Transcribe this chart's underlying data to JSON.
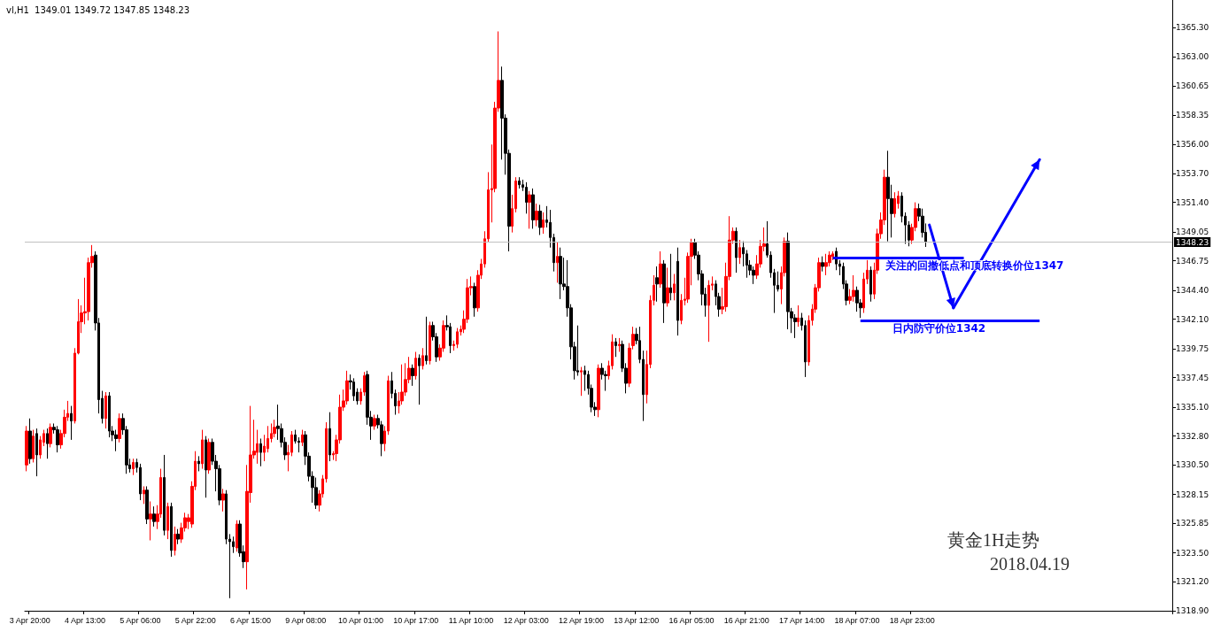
{
  "chart_data": {
    "type": "candlestick",
    "title": "vl,H1  1349.01 1349.72 1347.85 1348.23",
    "colors": [
      "#ff0000",
      "#000000",
      "#ff0000",
      "#000000",
      "#ff0000",
      "#ff0000",
      "#000000",
      "#ff0000",
      "#000000",
      "#000000",
      "#ff0000",
      "#ff0000",
      "#ff0000",
      "#000000",
      "#ff0000",
      "#ff0000",
      "#ff0000",
      "#ff0000",
      "#ff0000",
      "#ff0000",
      "#000000",
      "#000000",
      "#000000",
      "#ff0000",
      "#000000",
      "#000000",
      "#000000",
      "#ff0000",
      "#000000",
      "#000000",
      "#000000",
      "#ff0000",
      "#000000",
      "#000000",
      "#ff0000",
      "#000000",
      "#ff0000",
      "#000000",
      "#ff0000",
      "#ff0000",
      "#000000",
      "#ff0000",
      "#000000",
      "#ff0000",
      "#000000",
      "#ff0000",
      "#ff0000",
      "#ff0000",
      "#ff0000",
      "#ff0000",
      "#000000",
      "#ff0000",
      "#000000",
      "#ff0000",
      "#000000",
      "#000000",
      "#000000",
      "#ff0000",
      "#000000",
      "#000000",
      "#000000",
      "#ff0000",
      "#000000",
      "#000000",
      "#ff0000",
      "#ff0000",
      "#ff0000",
      "#ff0000",
      "#000000",
      "#ff0000",
      "#ff0000",
      "#ff0000",
      "#ff0000",
      "#000000",
      "#000000",
      "#000000",
      "#ff0000",
      "#ff0000",
      "#000000",
      "#000000",
      "#ff0000",
      "#000000",
      "#000000",
      "#000000",
      "#000000",
      "#ff0000",
      "#ff0000",
      "#ff0000",
      "#000000",
      "#ff0000",
      "#ff0000",
      "#ff0000",
      "#ff0000",
      "#ff0000",
      "#000000",
      "#000000",
      "#000000",
      "#ff0000",
      "#ff0000",
      "#000000",
      "#000000",
      "#ff0000",
      "#000000",
      "#000000",
      "#ff0000",
      "#ff0000",
      "#000000",
      "#000000",
      "#ff0000",
      "#ff0000",
      "#ff0000",
      "#ff0000",
      "#000000",
      "#ff0000",
      "#000000",
      "#ff0000",
      "#000000",
      "#ff0000",
      "#000000",
      "#000000",
      "#ff0000",
      "#ff0000",
      "#000000",
      "#000000",
      "#ff0000",
      "#ff0000",
      "#ff0000",
      "#ff0000",
      "#ff0000",
      "#ff0000",
      "#000000",
      "#ff0000",
      "#ff0000",
      "#ff0000",
      "#ff0000",
      "#ff0000",
      "#ff0000",
      "#ff0000",
      "#000000",
      "#000000",
      "#000000",
      "#ff0000",
      "#ff0000",
      "#000000",
      "#000000",
      "#000000",
      "#ff0000",
      "#000000",
      "#ff0000",
      "#000000",
      "#ff0000",
      "#000000",
      "#000000",
      "#000000",
      "#ff0000",
      "#000000",
      "#000000",
      "#000000",
      "#000000",
      "#000000",
      "#000000",
      "#ff0000",
      "#000000",
      "#000000",
      "#000000",
      "#000000",
      "#ff0000",
      "#000000",
      "#000000",
      "#ff0000",
      "#ff0000",
      "#000000",
      "#ff0000",
      "#000000",
      "#000000",
      "#ff0000",
      "#ff0000",
      "#000000",
      "#000000",
      "#000000",
      "#ff0000",
      "#ff0000",
      "#ff0000",
      "#000000",
      "#ff0000",
      "#000000",
      "#ff0000",
      "#000000",
      "#ff0000",
      "#000000",
      "#ff0000",
      "#ff0000",
      "#ff0000",
      "#ff0000",
      "#000000",
      "#000000",
      "#000000",
      "#000000",
      "#ff0000",
      "#ff0000",
      "#000000",
      "#000000",
      "#ff0000",
      "#ff0000",
      "#ff0000",
      "#ff0000",
      "#000000",
      "#ff0000",
      "#000000",
      "#000000",
      "#000000",
      "#000000",
      "#ff0000",
      "#ff0000",
      "#ff0000",
      "#000000",
      "#000000",
      "#000000",
      "#000000",
      "#ff0000",
      "#ff0000",
      "#000000",
      "#000000",
      "#000000",
      "#ff0000",
      "#000000",
      "#000000",
      "#ff0000",
      "#ff0000",
      "#ff0000",
      "#ff0000",
      "#000000",
      "#ff0000",
      "#ff0000",
      "#ff0000",
      "#000000",
      "#000000",
      "#000000",
      "#000000",
      "#ff0000",
      "#ff0000",
      "#000000",
      "#000000",
      "#ff0000",
      "#ff0000",
      "#000000",
      "#ff0000",
      "#ff0000",
      "#ff0000",
      "#ff0000",
      "#000000",
      "#000000",
      "#ff0000",
      "#ff0000",
      "#000000",
      "#000000",
      "#000000",
      "#ff0000",
      "#ff0000",
      "#000000",
      "#000000",
      "#000000",
      null,
      null,
      null,
      null,
      null,
      null,
      null,
      null,
      null,
      null,
      null,
      null,
      null,
      null,
      null,
      null,
      null,
      null,
      null,
      null,
      null,
      null,
      null,
      null,
      null,
      null,
      null,
      null,
      null,
      null,
      null,
      null,
      null,
      null,
      null,
      null,
      null,
      null,
      null,
      null,
      null,
      null,
      null,
      null,
      null,
      null,
      null,
      null,
      null,
      null,
      null,
      null,
      null,
      null,
      null,
      null,
      null,
      null,
      null,
      null,
      null,
      null,
      null,
      null,
      null,
      null,
      null,
      null,
      null,
      null,
      null
    ],
    "categories": [
      null,
      "3 Apr 20:00",
      null,
      null,
      null,
      null,
      null,
      null,
      null,
      null,
      null,
      null,
      null,
      null,
      null,
      null,
      null,
      "4 Apr 13:00",
      null,
      null,
      null,
      null,
      null,
      null,
      null,
      null,
      null,
      null,
      null,
      null,
      null,
      null,
      null,
      "5 Apr 06:00",
      null,
      null,
      null,
      null,
      null,
      null,
      null,
      null,
      null,
      null,
      null,
      null,
      null,
      null,
      null,
      "5 Apr 22:00",
      null,
      null,
      null,
      null,
      null,
      null,
      null,
      null,
      null,
      null,
      null,
      null,
      null,
      null,
      null,
      "6 Apr 15:00",
      null,
      null,
      null,
      null,
      null,
      null,
      null,
      null,
      null,
      null,
      null,
      null,
      null,
      null,
      null,
      "9 Apr 08:00",
      null,
      null,
      null,
      null,
      null,
      null,
      null,
      null,
      null,
      null,
      null,
      null,
      null,
      null,
      null,
      "10 Apr 01:00",
      null,
      null,
      null,
      null,
      null,
      null,
      null,
      null,
      null,
      null,
      null,
      null,
      null,
      null,
      null,
      "10 Apr 17:00",
      null,
      null,
      null,
      null,
      null,
      null,
      null,
      null,
      null,
      null,
      null,
      null,
      null,
      null,
      null,
      "11 Apr 10:00",
      null,
      null,
      null,
      null,
      null,
      null,
      null,
      null,
      null,
      null,
      null,
      null,
      null,
      null,
      null,
      "12 Apr 03:00",
      null,
      null,
      null,
      null,
      null,
      null,
      null,
      null,
      null,
      null,
      null,
      null,
      null,
      null,
      null,
      "12 Apr 19:00",
      null,
      null,
      null,
      null,
      null,
      null,
      null,
      null,
      null,
      null,
      null,
      null,
      null,
      null,
      null,
      "13 Apr 12:00",
      null,
      null,
      null,
      null,
      null,
      null,
      null,
      null,
      null,
      null,
      null,
      null,
      null,
      null,
      null,
      "16 Apr 05:00",
      null,
      null,
      null,
      null,
      null,
      null,
      null,
      null,
      null,
      null,
      null,
      null,
      null,
      null,
      null,
      "16 Apr 21:00",
      null,
      null,
      null,
      null,
      null,
      null,
      null,
      null,
      null,
      null,
      null,
      null,
      null,
      null,
      null,
      "17 Apr 14:00",
      null,
      null,
      null,
      null,
      null,
      null,
      null,
      null,
      null,
      null,
      null,
      null,
      null,
      null,
      null,
      "18 Apr 07:00",
      null,
      null,
      null,
      null,
      null,
      null,
      null,
      null,
      null,
      null,
      null,
      null,
      null,
      null,
      null,
      "18 Apr 23:00",
      null,
      null,
      null,
      null,
      null,
      null,
      null,
      null,
      null,
      null,
      null,
      null,
      null,
      null,
      null,
      null,
      null,
      null,
      null,
      null,
      null,
      null,
      null,
      null,
      null,
      null,
      null,
      null,
      null,
      null,
      null,
      null,
      null,
      null,
      null,
      null,
      null,
      null,
      null,
      null,
      null,
      null,
      null,
      null,
      null,
      null,
      null,
      null,
      null,
      null,
      null,
      null,
      null,
      null,
      null,
      null,
      null,
      null,
      null,
      null,
      null,
      null,
      null,
      null,
      null,
      null,
      null,
      null,
      null,
      null,
      null,
      null,
      null,
      null,
      null
    ],
    "ohlc": [
      [
        1330.5,
        1333.6,
        1330.0,
        1333.2
      ],
      [
        1333.2,
        1334.2,
        1330.6,
        1331.0
      ],
      [
        1331.0,
        1333.3,
        1330.7,
        1332.8
      ],
      [
        1333.0,
        1333.4,
        1329.6,
        1331.3
      ],
      [
        1331.3,
        1332.8,
        1331.0,
        1332.5
      ],
      [
        1332.3,
        1333.3,
        1332.0,
        1333.0
      ],
      [
        1333.0,
        1333.4,
        1331.0,
        1332.2
      ],
      [
        1332.2,
        1333.8,
        1331.9,
        1333.5
      ],
      [
        1333.5,
        1333.8,
        1333.0,
        1333.3
      ],
      [
        1333.3,
        1333.6,
        1331.5,
        1332.1
      ],
      [
        1332.1,
        1333.3,
        1331.8,
        1333.0
      ],
      [
        1333.0,
        1334.9,
        1332.7,
        1334.3
      ],
      [
        1334.3,
        1335.6,
        1334.0,
        1334.6
      ],
      [
        1334.6,
        1335.2,
        1332.5,
        1334.0
      ],
      [
        1334.0,
        1339.8,
        1333.8,
        1339.4
      ],
      [
        1339.4,
        1343.7,
        1339.3,
        1341.9
      ],
      [
        1341.9,
        1343.2,
        1341.0,
        1342.6
      ],
      [
        1342.6,
        1345.4,
        1341.7,
        1342.7
      ],
      [
        1342.7,
        1347.0,
        1342.0,
        1346.6
      ],
      [
        1346.6,
        1348.0,
        1346.2,
        1347.1
      ],
      [
        1347.2,
        1347.5,
        1341.2,
        1341.8
      ],
      [
        1341.8,
        1342.2,
        1334.6,
        1335.7
      ],
      [
        1335.8,
        1336.4,
        1333.8,
        1334.2
      ],
      [
        1334.2,
        1336.3,
        1333.4,
        1336.0
      ],
      [
        1336.0,
        1336.3,
        1332.7,
        1333.2
      ],
      [
        1333.2,
        1333.6,
        1332.4,
        1332.9
      ],
      [
        1332.9,
        1333.3,
        1331.6,
        1332.6
      ],
      [
        1332.6,
        1334.6,
        1332.3,
        1334.2
      ],
      [
        1334.2,
        1334.6,
        1332.9,
        1333.3
      ],
      [
        1333.3,
        1333.6,
        1329.8,
        1330.5
      ],
      [
        1330.5,
        1331.0,
        1329.9,
        1330.2
      ],
      [
        1330.2,
        1331.0,
        1329.7,
        1330.7
      ],
      [
        1330.7,
        1331.0,
        1329.9,
        1330.3
      ],
      [
        1330.3,
        1330.6,
        1327.7,
        1328.2
      ],
      [
        1328.2,
        1328.8,
        1327.4,
        1328.5
      ],
      [
        1328.5,
        1328.8,
        1325.8,
        1326.2
      ],
      [
        1326.2,
        1327.6,
        1324.5,
        1326.6
      ],
      [
        1326.6,
        1327.2,
        1325.6,
        1326.0
      ],
      [
        1326.0,
        1327.3,
        1325.4,
        1326.6
      ],
      [
        1326.6,
        1330.2,
        1326.3,
        1329.5
      ],
      [
        1329.5,
        1331.3,
        1324.9,
        1325.3
      ],
      [
        1325.3,
        1327.5,
        1324.6,
        1327.2
      ],
      [
        1327.2,
        1327.5,
        1323.2,
        1323.7
      ],
      [
        1323.7,
        1325.6,
        1323.3,
        1325.0
      ],
      [
        1325.0,
        1325.4,
        1324.2,
        1324.6
      ],
      [
        1324.6,
        1325.9,
        1324.3,
        1325.5
      ],
      [
        1325.5,
        1326.7,
        1325.2,
        1326.3
      ],
      [
        1326.0,
        1326.6,
        1325.4,
        1326.3
      ],
      [
        1325.8,
        1329.2,
        1325.5,
        1328.8
      ],
      [
        1328.8,
        1331.6,
        1328.5,
        1330.8
      ],
      [
        1330.8,
        1331.2,
        1330.0,
        1330.6
      ],
      [
        1330.6,
        1333.3,
        1330.2,
        1332.5
      ],
      [
        1332.5,
        1332.8,
        1327.9,
        1330.1
      ],
      [
        1330.1,
        1332.6,
        1329.8,
        1332.3
      ],
      [
        1332.3,
        1332.6,
        1330.5,
        1330.8
      ],
      [
        1330.8,
        1331.3,
        1328.4,
        1330.2
      ],
      [
        1330.2,
        1330.5,
        1327.3,
        1327.7
      ],
      [
        1327.7,
        1328.6,
        1326.8,
        1328.2
      ],
      [
        1328.2,
        1328.5,
        1324.2,
        1324.6
      ],
      [
        1324.6,
        1325.0,
        1319.9,
        1324.4
      ],
      [
        1324.4,
        1324.8,
        1323.5,
        1324.0
      ],
      [
        1323.9,
        1326.1,
        1323.6,
        1325.8
      ],
      [
        1325.8,
        1326.1,
        1323.2,
        1323.5
      ],
      [
        1323.6,
        1324.1,
        1322.3,
        1322.8
      ],
      [
        1322.8,
        1330.5,
        1320.6,
        1328.4
      ],
      [
        1328.3,
        1335.2,
        1327.5,
        1331.3
      ],
      [
        1331.3,
        1334.1,
        1331.0,
        1331.6
      ],
      [
        1331.5,
        1333.3,
        1330.6,
        1332.2
      ],
      [
        1332.2,
        1332.6,
        1330.4,
        1331.5
      ],
      [
        1331.5,
        1332.9,
        1330.8,
        1332.0
      ],
      [
        1331.8,
        1333.6,
        1331.5,
        1332.6
      ],
      [
        1332.6,
        1333.8,
        1332.3,
        1333.0
      ],
      [
        1333.0,
        1334.1,
        1332.7,
        1333.5
      ],
      [
        1333.6,
        1335.3,
        1332.5,
        1333.4
      ],
      [
        1333.4,
        1333.8,
        1331.9,
        1332.3
      ],
      [
        1332.3,
        1332.7,
        1330.9,
        1331.3
      ],
      [
        1331.3,
        1332.1,
        1330.0,
        1331.5
      ],
      [
        1331.5,
        1333.2,
        1331.2,
        1332.9
      ],
      [
        1332.9,
        1333.3,
        1332.2,
        1332.4
      ],
      [
        1332.4,
        1332.7,
        1331.5,
        1332.3
      ],
      [
        1332.3,
        1333.3,
        1332.0,
        1332.9
      ],
      [
        1332.9,
        1333.2,
        1330.5,
        1331.2
      ],
      [
        1331.2,
        1331.5,
        1329.2,
        1329.6
      ],
      [
        1329.6,
        1330.0,
        1327.5,
        1328.7
      ],
      [
        1328.7,
        1329.5,
        1327.0,
        1327.3
      ],
      [
        1327.3,
        1328.5,
        1326.8,
        1328.2
      ],
      [
        1328.2,
        1329.7,
        1327.9,
        1329.4
      ],
      [
        1329.4,
        1333.9,
        1329.1,
        1333.4
      ],
      [
        1333.4,
        1334.7,
        1330.8,
        1331.3
      ],
      [
        1331.3,
        1331.6,
        1330.9,
        1331.4
      ],
      [
        1331.4,
        1332.9,
        1330.8,
        1332.5
      ],
      [
        1332.5,
        1336.1,
        1332.2,
        1335.1
      ],
      [
        1335.1,
        1336.5,
        1334.8,
        1335.6
      ],
      [
        1335.6,
        1338.0,
        1335.3,
        1337.2
      ],
      [
        1337.2,
        1337.7,
        1336.5,
        1337.1
      ],
      [
        1337.1,
        1337.4,
        1335.6,
        1336.0
      ],
      [
        1336.3,
        1336.6,
        1335.3,
        1335.6
      ],
      [
        1335.6,
        1336.6,
        1335.3,
        1336.3
      ],
      [
        1336.3,
        1337.9,
        1336.0,
        1337.6
      ],
      [
        1337.7,
        1338.0,
        1333.7,
        1334.3
      ],
      [
        1334.3,
        1334.8,
        1332.5,
        1333.6
      ],
      [
        1333.6,
        1334.5,
        1333.3,
        1334.2
      ],
      [
        1334.2,
        1334.5,
        1333.4,
        1333.7
      ],
      [
        1333.7,
        1334.0,
        1331.2,
        1332.2
      ],
      [
        1332.2,
        1333.6,
        1331.6,
        1333.2
      ],
      [
        1333.2,
        1337.6,
        1332.9,
        1337.2
      ],
      [
        1337.2,
        1337.9,
        1335.8,
        1336.2
      ],
      [
        1336.2,
        1336.5,
        1334.5,
        1335.2
      ],
      [
        1335.2,
        1336.3,
        1334.6,
        1335.6
      ],
      [
        1335.6,
        1338.5,
        1335.3,
        1336.3
      ],
      [
        1336.3,
        1338.6,
        1336.0,
        1337.3
      ],
      [
        1337.3,
        1339.1,
        1337.0,
        1338.2
      ],
      [
        1338.2,
        1338.5,
        1336.8,
        1337.6
      ],
      [
        1337.6,
        1339.5,
        1337.3,
        1339.0
      ],
      [
        1339.0,
        1339.3,
        1335.3,
        1338.4
      ],
      [
        1338.4,
        1339.8,
        1338.1,
        1339.2
      ],
      [
        1339.2,
        1342.3,
        1338.5,
        1338.8
      ],
      [
        1338.8,
        1341.9,
        1338.5,
        1341.6
      ],
      [
        1341.6,
        1341.9,
        1340.4,
        1340.7
      ],
      [
        1340.7,
        1341.0,
        1338.7,
        1339.1
      ],
      [
        1339.1,
        1340.1,
        1338.8,
        1339.8
      ],
      [
        1339.8,
        1342.0,
        1339.5,
        1341.6
      ],
      [
        1341.6,
        1342.4,
        1341.2,
        1341.5
      ],
      [
        1341.5,
        1341.8,
        1339.4,
        1340.0
      ],
      [
        1340.0,
        1340.4,
        1339.6,
        1340.1
      ],
      [
        1340.1,
        1341.4,
        1339.8,
        1341.1
      ],
      [
        1341.1,
        1341.6,
        1340.8,
        1341.3
      ],
      [
        1341.3,
        1342.8,
        1341.0,
        1342.1
      ],
      [
        1342.1,
        1345.3,
        1341.8,
        1344.6
      ],
      [
        1344.6,
        1345.5,
        1344.0,
        1344.7
      ],
      [
        1344.7,
        1345.0,
        1342.3,
        1343.0
      ],
      [
        1343.0,
        1346.0,
        1342.7,
        1345.6
      ],
      [
        1345.6,
        1346.9,
        1345.3,
        1346.5
      ],
      [
        1346.5,
        1349.1,
        1346.2,
        1348.5
      ],
      [
        1348.5,
        1353.8,
        1348.2,
        1352.4
      ],
      [
        1352.4,
        1356.0,
        1349.8,
        1352.5
      ],
      [
        1352.5,
        1359.4,
        1352.2,
        1358.9
      ],
      [
        1358.9,
        1365.0,
        1358.6,
        1361.1
      ],
      [
        1361.1,
        1362.2,
        1354.8,
        1358.1
      ],
      [
        1358.1,
        1358.4,
        1353.6,
        1355.3
      ],
      [
        1355.3,
        1355.6,
        1347.5,
        1349.5
      ],
      [
        1349.5,
        1352.0,
        1349.0,
        1350.9
      ],
      [
        1350.9,
        1353.4,
        1350.6,
        1353.1
      ],
      [
        1353.1,
        1353.4,
        1352.5,
        1352.8
      ],
      [
        1352.8,
        1353.2,
        1352.3,
        1352.6
      ],
      [
        1352.6,
        1353.0,
        1350.5,
        1351.4
      ],
      [
        1351.4,
        1352.3,
        1349.3,
        1352.0
      ],
      [
        1352.0,
        1352.5,
        1349.3,
        1350.0
      ],
      [
        1350.0,
        1351.3,
        1349.5,
        1350.7
      ],
      [
        1350.7,
        1351.2,
        1348.8,
        1349.4
      ],
      [
        1349.4,
        1350.6,
        1348.9,
        1350.0
      ],
      [
        1350.0,
        1351.1,
        1349.4,
        1349.8
      ],
      [
        1349.8,
        1350.8,
        1347.8,
        1348.6
      ],
      [
        1348.6,
        1348.9,
        1345.9,
        1346.6
      ],
      [
        1346.6,
        1348.2,
        1345.0,
        1347.1
      ],
      [
        1347.1,
        1347.8,
        1343.7,
        1344.9
      ],
      [
        1344.9,
        1347.0,
        1344.4,
        1344.7
      ],
      [
        1344.7,
        1346.8,
        1342.3,
        1343.0
      ],
      [
        1343.0,
        1343.3,
        1338.9,
        1339.9
      ],
      [
        1339.9,
        1340.3,
        1337.3,
        1338.0
      ],
      [
        1338.0,
        1341.6,
        1337.6,
        1337.9
      ],
      [
        1337.9,
        1338.3,
        1336.0,
        1338.0
      ],
      [
        1338.0,
        1338.4,
        1336.4,
        1337.7
      ],
      [
        1337.7,
        1338.0,
        1336.1,
        1336.6
      ],
      [
        1336.6,
        1336.9,
        1334.7,
        1335.1
      ],
      [
        1335.1,
        1335.5,
        1334.4,
        1334.9
      ],
      [
        1334.9,
        1338.5,
        1334.3,
        1338.2
      ],
      [
        1338.2,
        1338.6,
        1337.3,
        1337.7
      ],
      [
        1337.7,
        1338.0,
        1336.4,
        1337.6
      ],
      [
        1337.6,
        1338.8,
        1337.3,
        1338.4
      ],
      [
        1338.4,
        1340.9,
        1338.1,
        1340.3
      ],
      [
        1340.3,
        1340.6,
        1339.1,
        1340.0
      ],
      [
        1340.0,
        1340.6,
        1339.5,
        1340.1
      ],
      [
        1340.1,
        1340.4,
        1337.9,
        1338.2
      ],
      [
        1338.2,
        1338.6,
        1336.2,
        1337.0
      ],
      [
        1337.0,
        1340.2,
        1336.7,
        1339.8
      ],
      [
        1340.0,
        1341.5,
        1339.7,
        1340.9
      ],
      [
        1340.9,
        1341.4,
        1340.1,
        1340.4
      ],
      [
        1340.4,
        1341.5,
        1338.6,
        1338.9
      ],
      [
        1338.9,
        1339.6,
        1334.0,
        1336.1
      ],
      [
        1336.1,
        1339.6,
        1335.4,
        1338.5
      ],
      [
        1338.5,
        1344.0,
        1338.2,
        1343.6
      ],
      [
        1343.6,
        1345.6,
        1343.2,
        1344.8
      ],
      [
        1345.4,
        1346.3,
        1343.5,
        1344.9
      ],
      [
        1344.9,
        1347.5,
        1344.6,
        1346.5
      ],
      [
        1346.5,
        1346.8,
        1341.8,
        1343.4
      ],
      [
        1343.4,
        1346.2,
        1343.1,
        1344.6
      ],
      [
        1344.6,
        1347.3,
        1343.6,
        1344.2
      ],
      [
        1344.2,
        1345.7,
        1343.6,
        1344.9
      ],
      [
        1346.7,
        1347.8,
        1340.8,
        1342.0
      ],
      [
        1342.0,
        1344.1,
        1341.7,
        1343.6
      ],
      [
        1343.6,
        1345.4,
        1343.2,
        1343.7
      ],
      [
        1343.7,
        1347.4,
        1343.4,
        1347.1
      ],
      [
        1347.1,
        1348.5,
        1344.8,
        1348.2
      ],
      [
        1348.2,
        1348.5,
        1346.9,
        1347.2
      ],
      [
        1347.2,
        1347.5,
        1345.2,
        1345.7
      ],
      [
        1345.7,
        1346.0,
        1343.2,
        1344.1
      ],
      [
        1344.1,
        1344.6,
        1342.3,
        1343.2
      ],
      [
        1343.2,
        1345.2,
        1340.3,
        1344.8
      ],
      [
        1344.8,
        1345.5,
        1344.4,
        1344.9
      ],
      [
        1344.9,
        1345.2,
        1343.2,
        1343.9
      ],
      [
        1343.9,
        1344.2,
        1342.3,
        1342.9
      ],
      [
        1342.9,
        1344.6,
        1342.5,
        1343.1
      ],
      [
        1343.1,
        1346.6,
        1342.7,
        1345.5
      ],
      [
        1345.5,
        1350.3,
        1345.2,
        1348.4
      ],
      [
        1348.4,
        1349.4,
        1348.1,
        1349.1
      ],
      [
        1349.1,
        1349.4,
        1345.8,
        1347.0
      ],
      [
        1347.0,
        1348.4,
        1346.5,
        1347.8
      ],
      [
        1347.8,
        1348.3,
        1346.3,
        1347.3
      ],
      [
        1347.3,
        1347.6,
        1345.4,
        1346.4
      ],
      [
        1346.4,
        1346.8,
        1345.6,
        1346.0
      ],
      [
        1346.0,
        1346.3,
        1344.9,
        1345.6
      ],
      [
        1345.6,
        1347.2,
        1345.3,
        1346.5
      ],
      [
        1346.5,
        1348.4,
        1346.2,
        1347.9
      ],
      [
        1347.9,
        1349.4,
        1347.5,
        1348.1
      ],
      [
        1348.1,
        1349.9,
        1347.0,
        1347.2
      ],
      [
        1347.2,
        1347.5,
        1345.4,
        1345.8
      ],
      [
        1345.8,
        1346.1,
        1342.6,
        1344.8
      ],
      [
        1344.8,
        1345.9,
        1344.3,
        1344.5
      ],
      [
        1344.5,
        1346.3,
        1343.3,
        1345.8
      ],
      [
        1345.8,
        1348.6,
        1345.5,
        1348.3
      ],
      [
        1348.3,
        1349.0,
        1341.3,
        1342.7
      ],
      [
        1342.7,
        1343.0,
        1341.0,
        1342.2
      ],
      [
        1342.2,
        1342.5,
        1340.6,
        1341.9
      ],
      [
        1341.9,
        1343.2,
        1341.5,
        1342.2
      ],
      [
        1342.2,
        1342.6,
        1341.2,
        1341.6
      ],
      [
        1341.6,
        1342.0,
        1337.5,
        1338.7
      ],
      [
        1338.7,
        1342.4,
        1338.4,
        1342.0
      ],
      [
        1342.0,
        1343.3,
        1341.6,
        1342.9
      ],
      [
        1342.9,
        1344.9,
        1342.6,
        1344.6
      ],
      [
        1344.6,
        1347.0,
        1344.3,
        1346.6
      ],
      [
        1346.6,
        1347.1,
        1345.9,
        1346.3
      ],
      [
        1346.3,
        1347.3,
        1345.6,
        1346.6
      ],
      [
        1346.6,
        1347.5,
        1346.3,
        1347.2
      ],
      [
        1347.1,
        1347.5,
        1346.8,
        1347.3
      ],
      [
        1347.5,
        1347.8,
        1346.0,
        1346.5
      ],
      [
        1346.5,
        1346.8,
        1345.6,
        1346.3
      ],
      [
        1346.3,
        1346.6,
        1344.5,
        1344.9
      ],
      [
        1344.9,
        1345.2,
        1343.2,
        1343.6
      ],
      [
        1343.6,
        1344.5,
        1343.3,
        1343.9
      ],
      [
        1343.9,
        1345.6,
        1343.5,
        1344.4
      ],
      [
        1344.4,
        1344.7,
        1342.7,
        1343.4
      ],
      [
        1343.4,
        1343.7,
        1342.2,
        1343.0
      ],
      [
        1343.0,
        1345.8,
        1342.6,
        1345.3
      ],
      [
        1345.3,
        1346.8,
        1344.9,
        1346.0
      ],
      [
        1346.0,
        1346.3,
        1343.5,
        1344.1
      ],
      [
        1344.1,
        1346.6,
        1343.7,
        1346.0
      ],
      [
        1346.0,
        1349.3,
        1345.7,
        1348.9
      ],
      [
        1348.9,
        1350.6,
        1348.5,
        1350.0
      ],
      [
        1350.0,
        1354.0,
        1349.6,
        1353.4
      ],
      [
        1353.4,
        1355.5,
        1348.3,
        1351.7
      ],
      [
        1351.7,
        1352.8,
        1348.6,
        1350.5
      ],
      [
        1350.5,
        1352.2,
        1350.2,
        1351.7
      ],
      [
        1351.3,
        1352.3,
        1350.9,
        1351.9
      ],
      [
        1351.9,
        1352.2,
        1349.8,
        1350.3
      ],
      [
        1350.3,
        1350.6,
        1348.1,
        1349.6
      ],
      [
        1349.6,
        1349.9,
        1347.9,
        1348.4
      ],
      [
        1348.4,
        1349.7,
        1348.1,
        1349.4
      ],
      [
        1349.4,
        1351.4,
        1349.1,
        1350.9
      ],
      [
        1350.9,
        1351.3,
        1349.9,
        1350.3
      ],
      [
        1350.3,
        1350.9,
        1348.6,
        1349.0
      ],
      [
        1349.01,
        1349.72,
        1347.85,
        1348.23
      ],
      null,
      null,
      null,
      null,
      null,
      null,
      null,
      null,
      null,
      null,
      null,
      null,
      null,
      null,
      null,
      null,
      null,
      null,
      null,
      null,
      null,
      null,
      null,
      null,
      null,
      null,
      null,
      null,
      null,
      null,
      null,
      null,
      null,
      null,
      null,
      null,
      null,
      null,
      null,
      null,
      null,
      null,
      null,
      null,
      null,
      null,
      null,
      null,
      null,
      null,
      null,
      null,
      null,
      null,
      null,
      null,
      null,
      null,
      null,
      null,
      null,
      null,
      null,
      null,
      null,
      null,
      null,
      null,
      null,
      null,
      null
    ],
    "ylim": [
      1318.9,
      1367.5
    ],
    "yticks": [
      {
        "value": 1318.9,
        "label": "1318.90"
      },
      {
        "value": 1321.2,
        "label": "1321.20"
      },
      {
        "value": 1323.5,
        "label": "1323.50"
      },
      {
        "value": 1325.85,
        "label": "1325.85"
      },
      {
        "value": 1328.15,
        "label": "1328.15"
      },
      {
        "value": 1330.5,
        "label": "1330.50"
      },
      {
        "value": 1332.8,
        "label": "1332.80"
      },
      {
        "value": 1335.1,
        "label": "1335.10"
      },
      {
        "value": 1337.45,
        "label": "1337.45"
      },
      {
        "value": 1339.75,
        "label": "1339.75"
      },
      {
        "value": 1342.1,
        "label": "1342.10"
      },
      {
        "value": 1344.4,
        "label": "1344.40"
      },
      {
        "value": 1346.75,
        "label": "1346.75"
      },
      {
        "value": 1349.05,
        "label": "1349.05"
      },
      {
        "value": 1351.4,
        "label": "1351.40"
      },
      {
        "value": 1353.7,
        "label": "1353.70"
      },
      {
        "value": 1356,
        "label": "1356.00"
      },
      {
        "value": 1358.35,
        "label": "1358.35"
      },
      {
        "value": 1360.65,
        "label": "1360.65"
      },
      {
        "value": 1363,
        "label": "1363.00"
      },
      {
        "value": 1365.3,
        "label": "1365.30"
      }
    ],
    "ref_lines": [
      {
        "axis": "y",
        "value": 1348.23,
        "label": "1348.23",
        "color": "#c0c0c0"
      },
      {
        "axis": "y",
        "value": 1347,
        "label": "关注的回撤低点和顶底转换价位1347",
        "color": "#0000ff"
      },
      {
        "axis": "y",
        "value": 1342,
        "label": "日内防守价位1342",
        "color": "#0000ff"
      }
    ],
    "annotations": [
      "黄金1H走势",
      "2018.04.19"
    ]
  }
}
